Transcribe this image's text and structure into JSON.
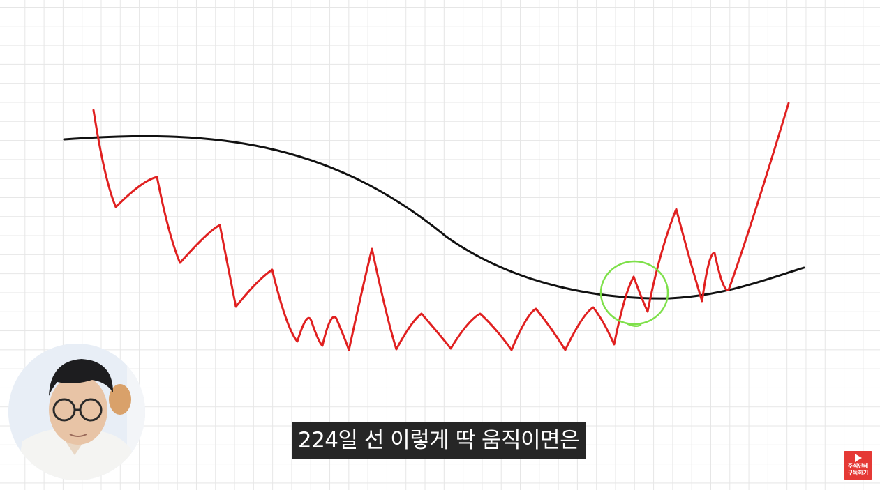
{
  "subtitle": {
    "text": "224일 선 이렇게 딱 움직이면은"
  },
  "subscribe_button": {
    "line1": "주식단테",
    "line2": "구독하기",
    "color": "#e53935"
  },
  "drawing": {
    "price_line_color": "#e02020",
    "average_line_color": "#111111",
    "highlight_circle_color": "#7ee04a"
  },
  "webcam": {
    "icon": "presenter-avatar"
  }
}
